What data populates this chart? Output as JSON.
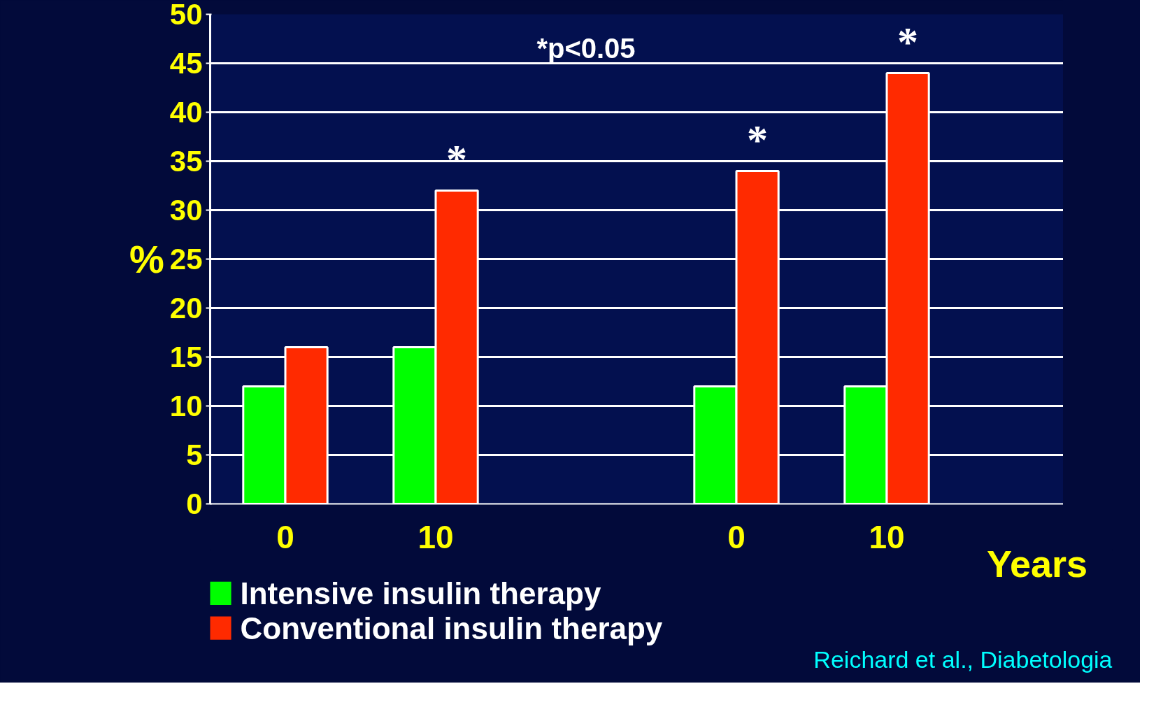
{
  "chart_data": {
    "type": "bar",
    "categories": [
      "0",
      "10",
      null,
      "0",
      "10",
      null
    ],
    "series": [
      {
        "name": "Intensive insulin therapy",
        "color": "#00ff00",
        "values": [
          12,
          16,
          null,
          12,
          12,
          null
        ]
      },
      {
        "name": "Conventional insulin therapy",
        "color": "#ff2a00",
        "values": [
          16,
          32,
          null,
          34,
          44,
          null
        ],
        "value_labels": [
          null,
          "*",
          null,
          "*",
          "*",
          null
        ]
      }
    ],
    "xlabel": "Years",
    "ylabel": "%",
    "ylim": [
      0,
      50
    ],
    "yticks": [
      0,
      5,
      10,
      15,
      20,
      25,
      30,
      35,
      40,
      45,
      50
    ],
    "grid": "y",
    "legend": "bottom left",
    "annotations": [
      "*p<0.05",
      "Reichard et al., Diabetologia"
    ]
  }
}
